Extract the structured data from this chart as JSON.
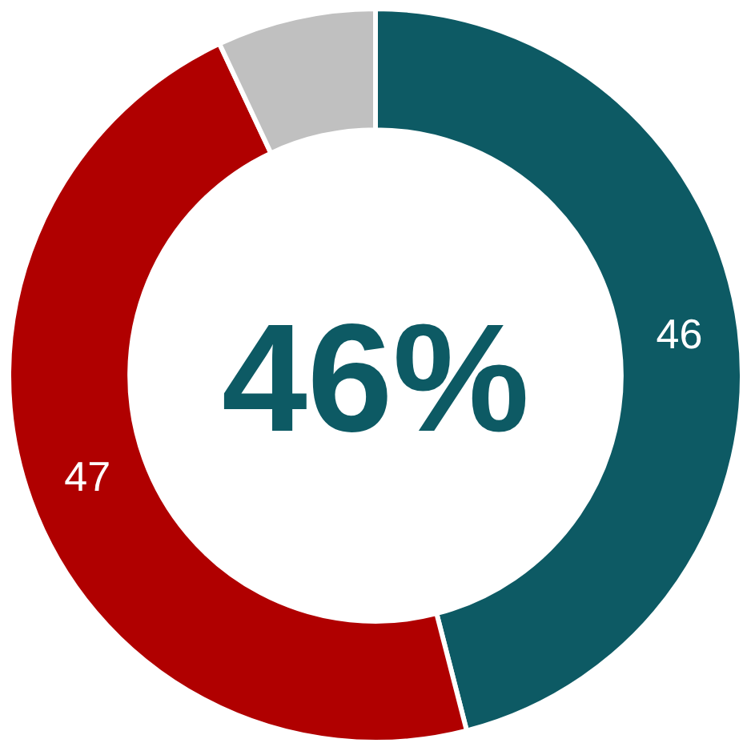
{
  "chart_data": {
    "type": "donut",
    "categories": [
      null,
      null,
      null
    ],
    "values": [
      46,
      47,
      7
    ],
    "colors": [
      "#0d5a64",
      "#b00000",
      "#c0c0c0"
    ],
    "value_labels": [
      "46",
      "47",
      null
    ],
    "annotations": [
      "46%"
    ],
    "legend": false
  }
}
